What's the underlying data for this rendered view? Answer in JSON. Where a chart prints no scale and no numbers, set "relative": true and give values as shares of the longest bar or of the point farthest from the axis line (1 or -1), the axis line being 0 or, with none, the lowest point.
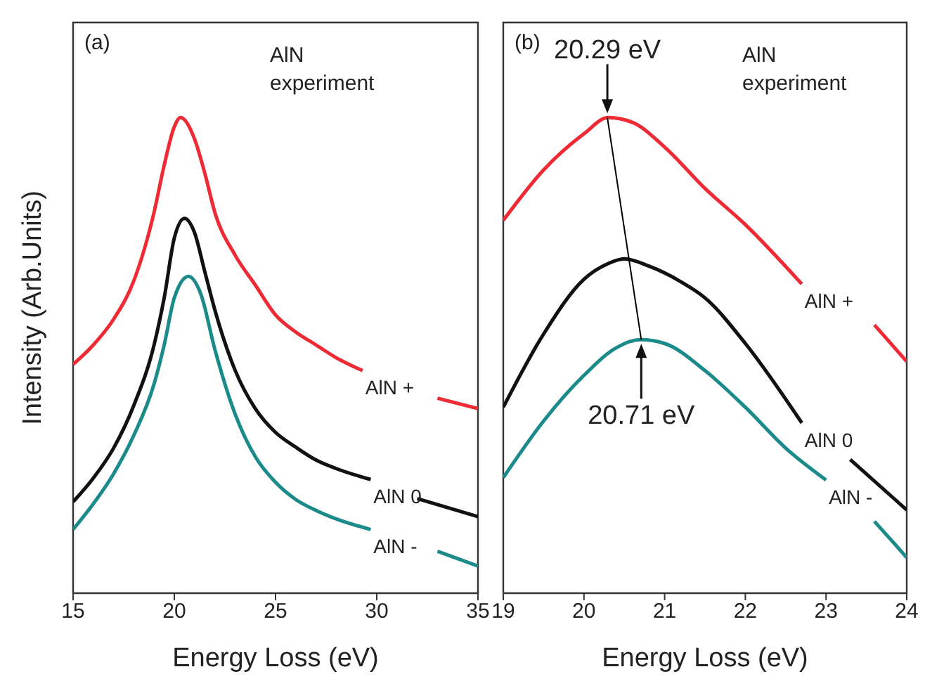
{
  "chart_data": [
    {
      "type": "line",
      "relative": true,
      "xlabel": "Energy Loss (eV)",
      "ylabel": "Intensity (Arb.Units)",
      "xlim": [
        15,
        35
      ],
      "xticks": [
        15,
        20,
        25,
        30,
        35
      ],
      "marker": "none",
      "line_style": "solid",
      "legend": false,
      "annotations": [
        "(a)",
        "AlN experiment"
      ],
      "series": [
        {
          "name": "AlN +",
          "color": "#ee2a35",
          "x": [
            15,
            16,
            17,
            18,
            19,
            19.5,
            20,
            20.3,
            21,
            21.5,
            22,
            23,
            24,
            25,
            26,
            27,
            28,
            29.3,
            31,
            33,
            35
          ],
          "values": [
            0.481,
            0.522,
            0.576,
            0.657,
            0.801,
            0.9,
            0.981,
            1.0,
            0.955,
            0.884,
            0.801,
            0.711,
            0.648,
            0.585,
            0.549,
            0.522,
            0.495,
            0.468,
            null,
            0.41,
            0.388
          ]
        },
        {
          "name": "AlN 0",
          "color": "#111111",
          "x": [
            15,
            16,
            17,
            18,
            19,
            19.5,
            20,
            20.5,
            21,
            21.5,
            22,
            23,
            24,
            25,
            26,
            27,
            28,
            29.7,
            31,
            32,
            35
          ],
          "values": [
            0.192,
            0.242,
            0.305,
            0.395,
            0.522,
            0.621,
            0.747,
            0.788,
            0.758,
            0.677,
            0.596,
            0.469,
            0.388,
            0.338,
            0.307,
            0.28,
            0.262,
            0.239,
            null,
            0.199,
            0.161
          ]
        },
        {
          "name": "AlN -",
          "color": "#1a8a8a",
          "x": [
            15,
            16,
            17,
            18,
            19,
            19.5,
            20,
            20.7,
            21.3,
            22,
            23,
            24,
            25,
            26,
            27,
            28,
            29.7,
            31.5,
            33,
            35
          ],
          "values": [
            0.134,
            0.188,
            0.251,
            0.332,
            0.44,
            0.522,
            0.621,
            0.666,
            0.63,
            0.513,
            0.377,
            0.287,
            0.233,
            0.197,
            0.174,
            0.156,
            0.134,
            null,
            0.088,
            0.057
          ]
        }
      ]
    },
    {
      "type": "line",
      "relative": true,
      "xlabel": "Energy Loss (eV)",
      "xlim": [
        19,
        24
      ],
      "xticks": [
        19,
        20,
        21,
        22,
        23,
        24
      ],
      "marker": "none",
      "line_style": "solid",
      "legend": false,
      "annotations": [
        "(b)",
        "AlN experiment",
        {
          "text": "20.29 eV",
          "x": 20.29,
          "y": 1.0
        },
        {
          "text": "20.71 eV",
          "x": 20.71,
          "y": 0.533
        }
      ],
      "series": [
        {
          "name": "AlN +",
          "color": "#ee2a35",
          "x": [
            19,
            19.5,
            20,
            20.3,
            20.6,
            21,
            21.5,
            22,
            22.7,
            23.1,
            23.6,
            24
          ],
          "values": [
            0.784,
            0.89,
            0.966,
            1.0,
            0.99,
            0.938,
            0.851,
            0.775,
            0.65,
            null,
            0.564,
            0.487
          ]
        },
        {
          "name": "AlN 0",
          "color": "#111111",
          "x": [
            19,
            19.5,
            20,
            20.3,
            20.5,
            20.8,
            21.2,
            21.5,
            22,
            22.7,
            23.1,
            23.3,
            24
          ],
          "values": [
            0.391,
            0.545,
            0.66,
            0.693,
            0.703,
            0.688,
            0.655,
            0.621,
            0.525,
            0.358,
            null,
            0.281,
            0.175
          ]
        },
        {
          "name": "AlN -",
          "color": "#1a8a8a",
          "x": [
            19,
            19.5,
            20,
            20.4,
            20.7,
            21,
            21.5,
            22,
            22.5,
            23,
            23.3,
            23.6,
            24
          ],
          "values": [
            0.243,
            0.362,
            0.458,
            0.516,
            0.533,
            0.525,
            0.468,
            0.391,
            0.305,
            0.238,
            null,
            0.151,
            0.075
          ]
        },
        {
          "type": "line",
          "color": "#000000",
          "x": [
            20.29,
            20.71
          ],
          "values": [
            1.0,
            0.533
          ]
        }
      ]
    }
  ]
}
